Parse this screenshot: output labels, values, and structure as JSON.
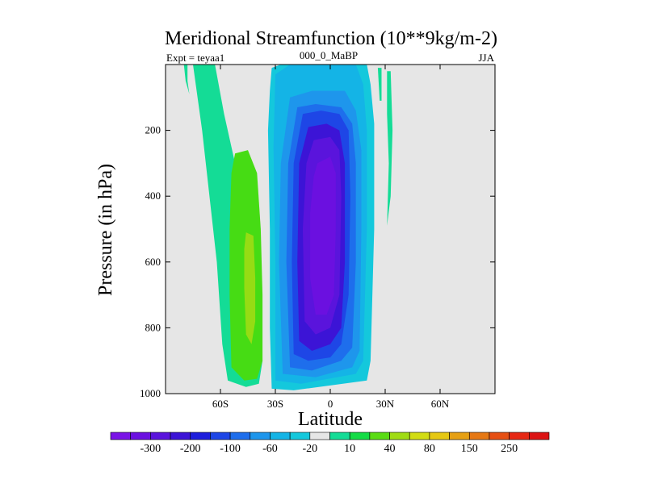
{
  "chart_data": {
    "type": "heatmap",
    "title": "Meridional Streamfunction (10**9kg/m-2)",
    "left_label": "Expt = teyaa1",
    "center_label": "000_0_MaBP",
    "right_label": "JJA",
    "xlabel": "Latitude",
    "ylabel": "Pressure (in hPa)",
    "x_range": [
      -90,
      90
    ],
    "y_range": [
      0,
      1000
    ],
    "y_inverted": true,
    "x_ticks": [
      {
        "value": -60,
        "label": "60S"
      },
      {
        "value": -30,
        "label": "30S"
      },
      {
        "value": 0,
        "label": "0"
      },
      {
        "value": 30,
        "label": "30N"
      },
      {
        "value": 60,
        "label": "60N"
      }
    ],
    "y_ticks": [
      {
        "value": 200,
        "label": "200"
      },
      {
        "value": 400,
        "label": "400"
      },
      {
        "value": 600,
        "label": "600"
      },
      {
        "value": 800,
        "label": "800"
      },
      {
        "value": 1000,
        "label": "1000"
      }
    ],
    "background_color": "#e6e6e6",
    "colorbar": {
      "colors": [
        "#7a14e6",
        "#6b10e0",
        "#5a14dc",
        "#3c14d6",
        "#1e1edc",
        "#1e46e6",
        "#1e6eec",
        "#1e96ec",
        "#14b4e6",
        "#14c8dc",
        "#e6e6e6",
        "#14dc96",
        "#14dc46",
        "#5adc14",
        "#a0dc14",
        "#d2dc14",
        "#e6c814",
        "#e6a014",
        "#e67814",
        "#e65014",
        "#e62814",
        "#dc1414"
      ],
      "labels": [
        {
          "after_index": 1,
          "text": "-300"
        },
        {
          "after_index": 3,
          "text": "-200"
        },
        {
          "after_index": 5,
          "text": "-100"
        },
        {
          "after_index": 7,
          "text": "-60"
        },
        {
          "after_index": 9,
          "text": "-20"
        },
        {
          "after_index": 11,
          "text": "10"
        },
        {
          "after_index": 13,
          "text": "40"
        },
        {
          "after_index": 15,
          "text": "80"
        },
        {
          "after_index": 17,
          "text": "150"
        },
        {
          "after_index": 19,
          "text": "250"
        }
      ]
    },
    "contour_regions": [
      {
        "name": "southern-cell-weak",
        "level": "10 to 40",
        "color": "#14dc96",
        "points": [
          [
            -75,
            0
          ],
          [
            -63,
            0
          ],
          [
            -58,
            150
          ],
          [
            -52,
            300
          ],
          [
            -46,
            420
          ],
          [
            -42,
            600
          ],
          [
            -38,
            800
          ],
          [
            -37,
            900
          ],
          [
            -39,
            970
          ],
          [
            -46,
            980
          ],
          [
            -56,
            960
          ],
          [
            -59,
            850
          ],
          [
            -62,
            600
          ],
          [
            -66,
            400
          ],
          [
            -70,
            200
          ]
        ]
      },
      {
        "name": "southern-cell-mid",
        "level": "40 to 80",
        "color": "#46dc14",
        "points": [
          [
            -52,
            270
          ],
          [
            -45,
            260
          ],
          [
            -40,
            330
          ],
          [
            -38,
            500
          ],
          [
            -37,
            700
          ],
          [
            -37,
            900
          ],
          [
            -40,
            955
          ],
          [
            -47,
            960
          ],
          [
            -54,
            920
          ],
          [
            -55,
            700
          ],
          [
            -55,
            500
          ],
          [
            -54,
            330
          ]
        ]
      },
      {
        "name": "southern-cell-core",
        "level": "80 to 150",
        "color": "#96dc14",
        "points": [
          [
            -46,
            510
          ],
          [
            -42,
            520
          ],
          [
            -41,
            650
          ],
          [
            -41,
            780
          ],
          [
            -43,
            850
          ],
          [
            -46,
            820
          ],
          [
            -47,
            680
          ],
          [
            -47,
            560
          ]
        ]
      },
      {
        "name": "southern-fringe",
        "level": "10 to 40",
        "color": "#14dc96",
        "points": [
          [
            -80,
            0
          ],
          [
            -78,
            0
          ],
          [
            -78,
            50
          ],
          [
            -77,
            90
          ],
          [
            -79,
            50
          ]
        ]
      },
      {
        "name": "tropical-cell-outer",
        "level": "-20 to 10",
        "color": "#14c8dc",
        "points": [
          [
            -32,
            10
          ],
          [
            -27,
            0
          ],
          [
            20,
            0
          ],
          [
            22,
            60
          ],
          [
            24,
            180
          ],
          [
            24,
            500
          ],
          [
            22,
            900
          ],
          [
            20,
            960
          ],
          [
            -20,
            990
          ],
          [
            -32,
            985
          ],
          [
            -33,
            800
          ],
          [
            -33,
            500
          ],
          [
            -34,
            200
          ],
          [
            -33,
            80
          ]
        ]
      },
      {
        "name": "tropical-cell-band-1",
        "level": "-60 to -20",
        "color": "#14b4e6",
        "points": [
          [
            -30,
            30
          ],
          [
            -22,
            0
          ],
          [
            14,
            0
          ],
          [
            18,
            60
          ],
          [
            20,
            200
          ],
          [
            20,
            500
          ],
          [
            18,
            900
          ],
          [
            14,
            940
          ],
          [
            -16,
            970
          ],
          [
            -30,
            960
          ],
          [
            -30,
            600
          ],
          [
            -31,
            250
          ]
        ]
      },
      {
        "name": "tropical-cell-band-2",
        "level": "-100 to -60",
        "color": "#1e96ec",
        "points": [
          [
            -22,
            100
          ],
          [
            -10,
            80
          ],
          [
            8,
            80
          ],
          [
            14,
            140
          ],
          [
            17,
            260
          ],
          [
            17,
            500
          ],
          [
            16,
            870
          ],
          [
            12,
            920
          ],
          [
            -8,
            950
          ],
          [
            -26,
            940
          ],
          [
            -28,
            600
          ],
          [
            -27,
            300
          ]
        ]
      },
      {
        "name": "tropical-cell-band-3",
        "level": "-150 to -100",
        "color": "#1e6eec",
        "points": [
          [
            -18,
            130
          ],
          [
            -8,
            120
          ],
          [
            6,
            130
          ],
          [
            12,
            180
          ],
          [
            14,
            300
          ],
          [
            14,
            600
          ],
          [
            12,
            860
          ],
          [
            6,
            900
          ],
          [
            -10,
            930
          ],
          [
            -22,
            920
          ],
          [
            -24,
            600
          ],
          [
            -23,
            300
          ]
        ]
      },
      {
        "name": "tropical-cell-band-4",
        "level": "-200 to -150",
        "color": "#1e46e6",
        "points": [
          [
            -15,
            150
          ],
          [
            -5,
            140
          ],
          [
            5,
            150
          ],
          [
            10,
            200
          ],
          [
            11,
            400
          ],
          [
            10,
            700
          ],
          [
            6,
            850
          ],
          [
            0,
            890
          ],
          [
            -12,
            900
          ],
          [
            -20,
            880
          ],
          [
            -21,
            600
          ],
          [
            -20,
            300
          ]
        ]
      },
      {
        "name": "tropical-cell-band-5",
        "level": "-250 to -200",
        "color": "#3c14d6",
        "points": [
          [
            -12,
            190
          ],
          [
            -2,
            180
          ],
          [
            5,
            200
          ],
          [
            8,
            300
          ],
          [
            8,
            600
          ],
          [
            6,
            800
          ],
          [
            0,
            850
          ],
          [
            -10,
            870
          ],
          [
            -17,
            840
          ],
          [
            -18,
            600
          ],
          [
            -17,
            300
          ]
        ]
      },
      {
        "name": "tropical-cell-band-6",
        "level": "-300 to -250",
        "color": "#5a14dc",
        "points": [
          [
            -9,
            230
          ],
          [
            0,
            220
          ],
          [
            5,
            260
          ],
          [
            6,
            400
          ],
          [
            5,
            700
          ],
          [
            0,
            800
          ],
          [
            -8,
            820
          ],
          [
            -14,
            780
          ],
          [
            -15,
            500
          ],
          [
            -13,
            300
          ]
        ]
      },
      {
        "name": "tropical-cell-core",
        "level": "below -300",
        "color": "#6b10e0",
        "points": [
          [
            -7,
            300
          ],
          [
            0,
            280
          ],
          [
            3,
            330
          ],
          [
            3,
            500
          ],
          [
            2,
            700
          ],
          [
            -2,
            760
          ],
          [
            -8,
            760
          ],
          [
            -11,
            650
          ],
          [
            -11,
            450
          ],
          [
            -9,
            340
          ]
        ]
      },
      {
        "name": "northern-filament-1",
        "level": "10 to 40",
        "color": "#14dc96",
        "points": [
          [
            26,
            10
          ],
          [
            28,
            10
          ],
          [
            28,
            110
          ],
          [
            27,
            110
          ]
        ]
      },
      {
        "name": "northern-filament-2",
        "level": "10 to 40",
        "color": "#14dc96",
        "points": [
          [
            31,
            20
          ],
          [
            33,
            20
          ],
          [
            34,
            200
          ],
          [
            33,
            400
          ],
          [
            31,
            490
          ],
          [
            32,
            300
          ],
          [
            31,
            150
          ]
        ]
      }
    ]
  }
}
